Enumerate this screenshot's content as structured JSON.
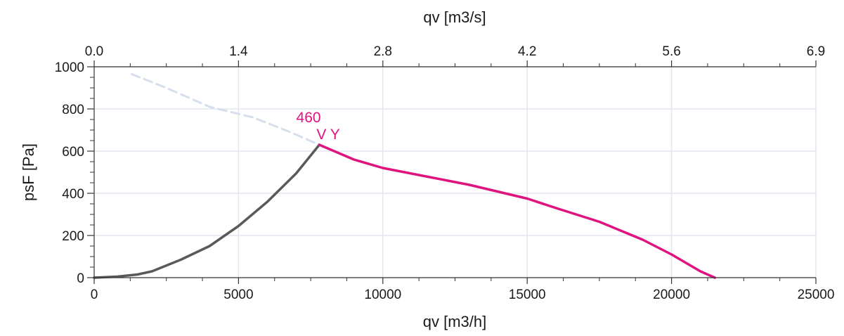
{
  "chart_data": {
    "type": "line",
    "xlabel": "qv [m3/h]",
    "x2label": "qv [m3/s]",
    "ylabel": "psF [Pa]",
    "xlim": [
      0,
      25000
    ],
    "ylim": [
      0,
      1000
    ],
    "x_ticks": [
      0,
      5000,
      10000,
      15000,
      20000,
      25000
    ],
    "x_tick_labels": [
      "0",
      "5000",
      "10000",
      "15000",
      "20000",
      "25000"
    ],
    "x2_tick_labels": [
      "0.0",
      "1.4",
      "2.8",
      "4.2",
      "5.6",
      "6.9"
    ],
    "y_ticks": [
      0,
      200,
      400,
      600,
      800,
      1000
    ],
    "y_tick_labels": [
      "0",
      "200",
      "400",
      "600",
      "800",
      "1000"
    ],
    "grid": true,
    "annotations": [
      {
        "text": "460",
        "x": 7000,
        "y": 760,
        "color": "#e0147f"
      },
      {
        "text": "V Y",
        "x": 7700,
        "y": 680,
        "color": "#e0147f"
      }
    ],
    "series": [
      {
        "role": "system-curve-extension",
        "color": "#d6dfeb",
        "style": "dashed",
        "points": [
          [
            1300,
            965
          ],
          [
            2500,
            900
          ],
          [
            4000,
            810
          ],
          [
            5500,
            760
          ],
          [
            6800,
            690
          ],
          [
            7800,
            630
          ]
        ]
      },
      {
        "role": "system-curve",
        "color": "#5a5a5a",
        "style": "solid",
        "points": [
          [
            0,
            0
          ],
          [
            800,
            5
          ],
          [
            1500,
            15
          ],
          [
            2000,
            30
          ],
          [
            3000,
            85
          ],
          [
            4000,
            150
          ],
          [
            5000,
            245
          ],
          [
            6000,
            360
          ],
          [
            7000,
            495
          ],
          [
            7800,
            630
          ]
        ]
      },
      {
        "role": "fan-curve",
        "color": "#e0147f",
        "style": "solid",
        "points": [
          [
            7800,
            630
          ],
          [
            9000,
            560
          ],
          [
            10000,
            520
          ],
          [
            11500,
            480
          ],
          [
            13000,
            440
          ],
          [
            15000,
            375
          ],
          [
            16000,
            330
          ],
          [
            17500,
            265
          ],
          [
            19000,
            180
          ],
          [
            20000,
            110
          ],
          [
            21000,
            30
          ],
          [
            21500,
            0
          ]
        ]
      }
    ]
  }
}
